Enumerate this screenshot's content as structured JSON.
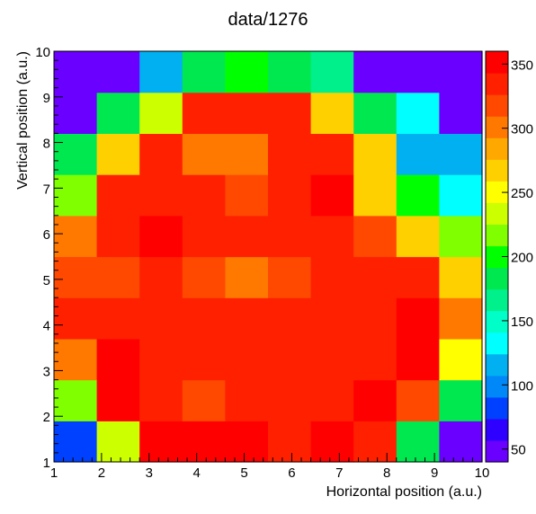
{
  "chart_data": {
    "type": "heatmap",
    "title": "data/1276",
    "xlabel": "Horizontal position (a.u.)",
    "ylabel": "Vertical position (a.u.)",
    "xlim": [
      1,
      10
    ],
    "ylim": [
      1,
      10
    ],
    "x_ticks": [
      "1",
      "2",
      "3",
      "4",
      "5",
      "6",
      "7",
      "8",
      "9",
      "10"
    ],
    "y_ticks": [
      "1",
      "2",
      "3",
      "4",
      "5",
      "6",
      "7",
      "8",
      "9",
      "10"
    ],
    "nx": 10,
    "ny": 10,
    "colorbar": {
      "range": [
        40,
        360
      ],
      "ticks": [
        "50",
        "100",
        "150",
        "200",
        "250",
        "300",
        "350"
      ],
      "tick_values": [
        50,
        100,
        150,
        200,
        250,
        300,
        350
      ]
    },
    "z_rows_bottom_to_top": [
      [
        75,
        235,
        345,
        345,
        345,
        330,
        345,
        330,
        175,
        50
      ],
      [
        215,
        345,
        330,
        310,
        330,
        330,
        330,
        345,
        310,
        175
      ],
      [
        305,
        345,
        330,
        330,
        330,
        330,
        330,
        330,
        345,
        245
      ],
      [
        340,
        330,
        330,
        330,
        330,
        330,
        330,
        330,
        345,
        295
      ],
      [
        310,
        310,
        330,
        310,
        295,
        310,
        330,
        330,
        330,
        275
      ],
      [
        295,
        330,
        345,
        330,
        330,
        330,
        330,
        310,
        275,
        215
      ],
      [
        225,
        330,
        330,
        330,
        310,
        330,
        345,
        275,
        205,
        130
      ],
      [
        180,
        275,
        330,
        295,
        295,
        330,
        330,
        275,
        110,
        110
      ],
      [
        45,
        175,
        240,
        330,
        330,
        330,
        275,
        175,
        130,
        45
      ],
      [
        45,
        45,
        115,
        190,
        205,
        190,
        160,
        45,
        45,
        45
      ]
    ]
  }
}
